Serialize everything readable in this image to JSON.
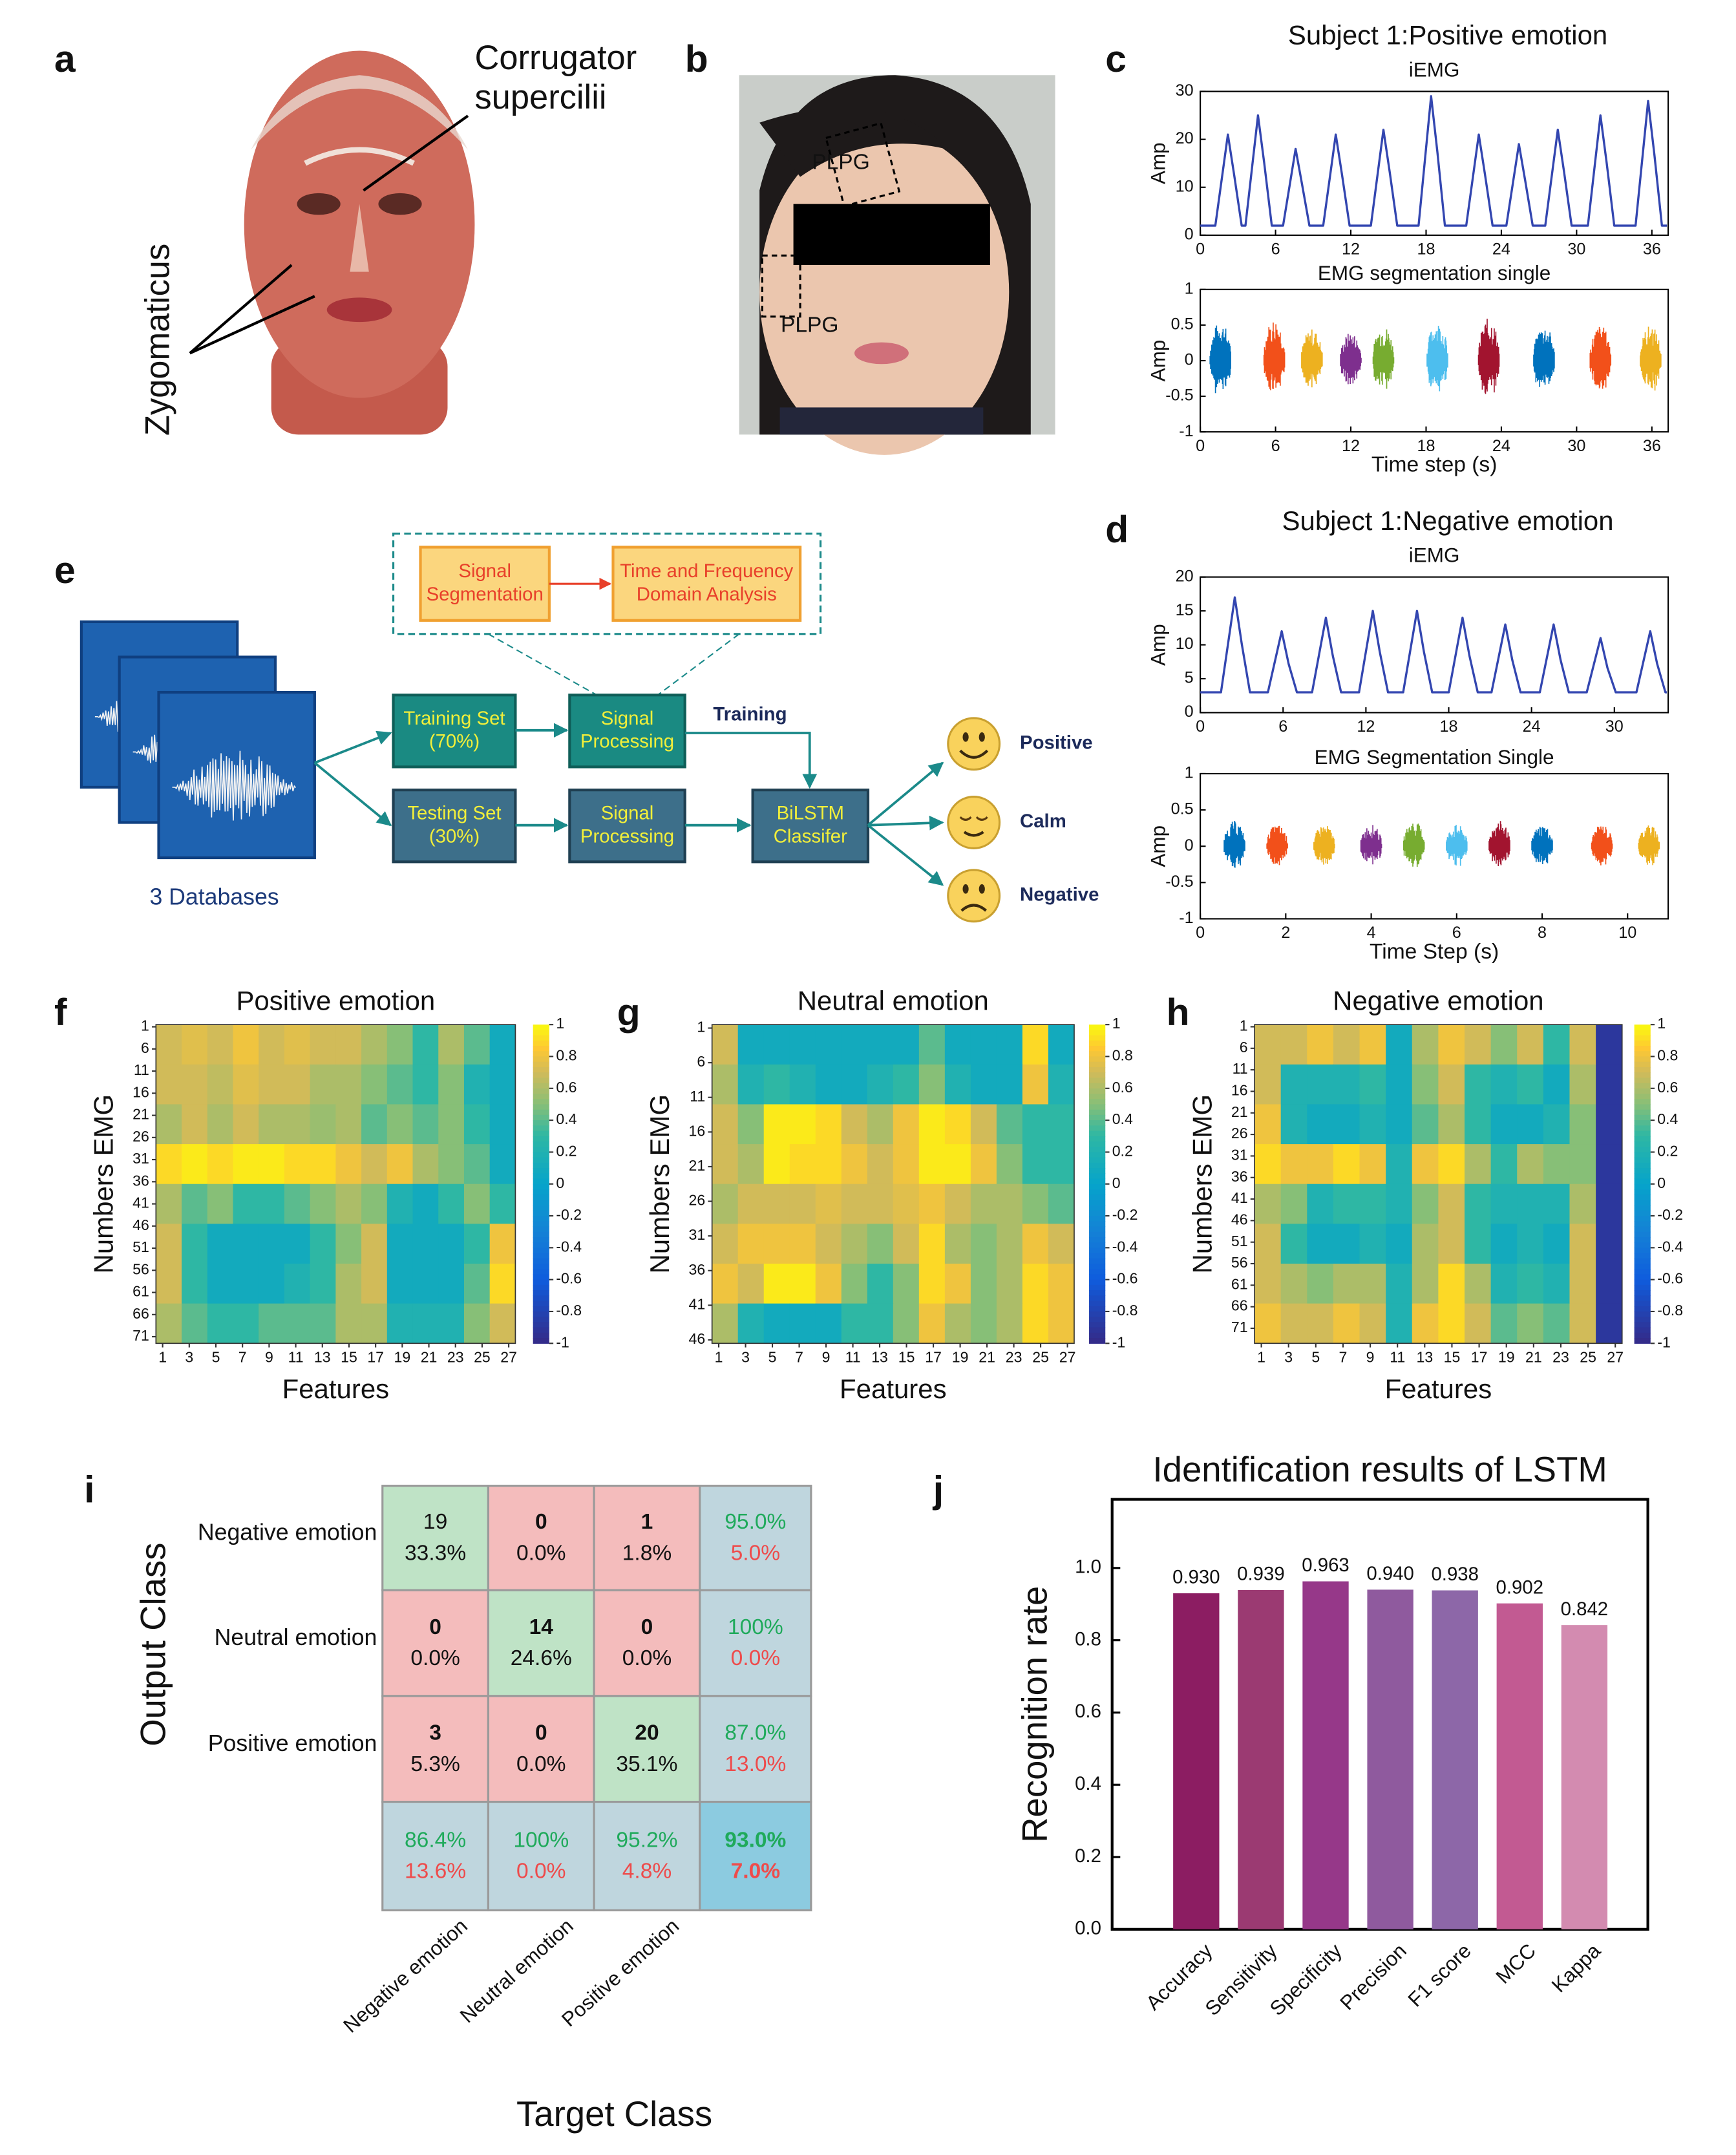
{
  "panel_labels": [
    "a",
    "b",
    "c",
    "d",
    "e",
    "f",
    "g",
    "h",
    "i",
    "j"
  ],
  "a": {
    "labels": [
      "Corrugator",
      "supercilii",
      "Zygomaticus"
    ]
  },
  "b": {
    "labels": [
      "PLPG",
      "PLPG"
    ]
  },
  "e": {
    "boxes": [
      {
        "lines": [
          "Signal",
          "Segmentation"
        ]
      },
      {
        "lines": [
          "Time and Frequency",
          "Domain Analysis"
        ]
      },
      {
        "lines": [
          "Training Set",
          "(70%)"
        ]
      },
      {
        "lines": [
          "Signal",
          "Processing"
        ]
      },
      {
        "lines": [
          "Testing Set",
          "(30%)"
        ]
      },
      {
        "lines": [
          "Signal",
          "Processing"
        ]
      },
      {
        "lines": [
          "BiLSTM",
          "Classifer"
        ]
      }
    ],
    "training_label": "Training",
    "databases": "3 Databases",
    "outputs": [
      "Positive",
      "Calm",
      "Negative"
    ]
  },
  "i": {
    "y_title": "Output Class",
    "x_title": "Target Class",
    "row_labels": [
      "Negative emotion",
      "Neutral emotion",
      "Positive emotion"
    ],
    "col_labels": [
      "Negative emotion",
      "Neutral emotion",
      "Positive emotion"
    ],
    "cells": [
      [
        [
          "19",
          "33.3%"
        ],
        [
          "0",
          "0.0%"
        ],
        [
          "1",
          "1.8%"
        ],
        [
          "95.0%",
          "5.0%"
        ]
      ],
      [
        [
          "0",
          "0.0%"
        ],
        [
          "14",
          "24.6%"
        ],
        [
          "0",
          "0.0%"
        ],
        [
          "100%",
          "0.0%"
        ]
      ],
      [
        [
          "3",
          "5.3%"
        ],
        [
          "0",
          "0.0%"
        ],
        [
          "20",
          "35.1%"
        ],
        [
          "87.0%",
          "13.0%"
        ]
      ],
      [
        [
          "86.4%",
          "13.6%"
        ],
        [
          "100%",
          "0.0%"
        ],
        [
          "95.2%",
          "4.8%"
        ],
        [
          "93.0%",
          "7.0%"
        ]
      ]
    ]
  },
  "chart_data": [
    {
      "type": "line",
      "title": "Subject 1:Positive emotion",
      "subtitle": "iEMG",
      "y_label": "Amp",
      "x": [
        0,
        1.2,
        2.2,
        2.7,
        3.3,
        3.6,
        4.6,
        5.1,
        5.7,
        6.6,
        7.6,
        8.1,
        8.7,
        9.8,
        10.8,
        11.3,
        11.9,
        13.6,
        14.6,
        15.1,
        15.7,
        17.4,
        18.4,
        18.9,
        19.5,
        21.2,
        22.2,
        22.7,
        23.3,
        24.4,
        25.4,
        25.9,
        26.5,
        27.5,
        28.5,
        29.0,
        29.6,
        30.9,
        31.9,
        32.4,
        33.0,
        34.7,
        35.7,
        36.2,
        36.8,
        37.2
      ],
      "values": [
        2,
        2,
        21,
        12.6,
        2,
        2,
        25,
        15,
        2,
        2,
        18,
        10.8,
        2,
        2,
        21,
        12.6,
        2,
        2,
        22,
        13.2,
        2,
        2,
        29,
        17.4,
        2,
        2,
        21,
        12.6,
        2,
        2,
        19,
        11.4,
        2,
        2,
        22,
        13.2,
        2,
        2,
        25,
        15,
        2,
        2,
        28,
        16.8,
        2,
        2
      ],
      "color": "#3346b0",
      "xlim": [
        0,
        37.3
      ],
      "ylim": [
        0,
        30
      ],
      "xticks": [
        0,
        6,
        12,
        18,
        24,
        30,
        36
      ],
      "yticks": [
        0,
        10,
        20,
        30
      ]
    },
    {
      "type": "burst",
      "title": "EMG segmentation single",
      "x_label": "Time step (s)",
      "y_label": "Amp",
      "x": [
        1.6,
        5.9,
        8.9,
        12,
        14.6,
        18.9,
        23,
        27.4,
        31.9,
        35.9
      ],
      "values": [
        0.55,
        0.6,
        0.45,
        0.4,
        0.5,
        0.55,
        0.6,
        0.5,
        0.5,
        0.5
      ],
      "colors": [
        "#0072bd",
        "#f2501a",
        "#edb120",
        "#7e2f8e",
        "#77ac30",
        "#4dbeee",
        "#a2142f",
        "#0072bd",
        "#f2501a",
        "#edb120"
      ],
      "xlim": [
        0,
        37.3
      ],
      "ylim": [
        -1,
        1
      ],
      "xticks": [
        0,
        6,
        12,
        18,
        24,
        30,
        36
      ],
      "yticks": [
        -1,
        -0.5,
        0,
        0.5,
        1
      ]
    },
    {
      "type": "line",
      "title": "Subject 1:Negative emotion",
      "subtitle": "iEMG",
      "y_label": "Amp",
      "x": [
        0,
        1.5,
        2.5,
        3.0,
        3.6,
        4.9,
        5.9,
        6.4,
        7.0,
        8.1,
        9.1,
        9.6,
        10.2,
        11.5,
        12.5,
        13.0,
        13.6,
        14.7,
        15.7,
        16.2,
        16.8,
        18.0,
        19.0,
        19.5,
        20.1,
        21.1,
        22.1,
        22.6,
        23.2,
        24.6,
        25.6,
        26.1,
        26.7,
        28.0,
        29.0,
        29.5,
        30.1,
        31.6,
        32.6,
        33.1,
        33.7,
        33.8
      ],
      "values": [
        3,
        3,
        17,
        10.2,
        3,
        3,
        12,
        7.2,
        3,
        3,
        14,
        8.4,
        3,
        3,
        15,
        9,
        3,
        3,
        15,
        9,
        3,
        3,
        14,
        8.4,
        3,
        3,
        13,
        7.8,
        3,
        3,
        13,
        7.8,
        3,
        3,
        11,
        6.6,
        3,
        3,
        12,
        7.2,
        3,
        3
      ],
      "color": "#3346b0",
      "xlim": [
        0,
        33.9
      ],
      "ylim": [
        0,
        20
      ],
      "xticks": [
        0,
        6,
        12,
        18,
        24,
        30
      ],
      "yticks": [
        0,
        5,
        10,
        15,
        20
      ]
    },
    {
      "type": "burst",
      "title": "EMG Segmentation Single",
      "x_label": "Time Step (s)",
      "y_label": "Amp",
      "x": [
        0.8,
        1.8,
        2.9,
        4.0,
        5.0,
        6.0,
        7.0,
        8.0,
        9.4,
        10.5
      ],
      "values": [
        0.35,
        0.3,
        0.3,
        0.3,
        0.35,
        0.3,
        0.35,
        0.3,
        0.3,
        0.3
      ],
      "colors": [
        "#0072bd",
        "#f2501a",
        "#edb120",
        "#7e2f8e",
        "#77ac30",
        "#4dbeee",
        "#a2142f",
        "#0072bd",
        "#f2501a",
        "#edb120"
      ],
      "xlim": [
        0,
        10.95
      ],
      "ylim": [
        -1,
        1
      ],
      "xticks": [
        0,
        2,
        4,
        6,
        8,
        10
      ],
      "yticks": [
        -1,
        -0.5,
        0,
        0.5,
        1
      ]
    },
    {
      "type": "heatmap",
      "title": "Positive emotion",
      "x_label": "Features",
      "y_label": "Numbers EMG",
      "xlim": [
        0.5,
        27.5
      ],
      "ylim": [
        0.5,
        72.5
      ],
      "xticks": [
        1,
        3,
        5,
        7,
        9,
        11,
        13,
        15,
        17,
        19,
        21,
        23,
        25,
        27
      ],
      "yticks": [
        1,
        6,
        11,
        16,
        21,
        26,
        31,
        36,
        41,
        46,
        51,
        56,
        61,
        66,
        71
      ],
      "zlim": [
        -1,
        1
      ],
      "zticks": [
        1,
        0.8,
        0.6,
        0.4,
        0.2,
        0,
        -0.2,
        -0.4,
        -0.6,
        -0.8,
        -1
      ],
      "colormap": [
        [
          -1,
          "#352a87"
        ],
        [
          -0.6,
          "#0f5cdd"
        ],
        [
          -0.3,
          "#1481d6"
        ],
        [
          0,
          "#06a4ca"
        ],
        [
          0.3,
          "#2eb7a4"
        ],
        [
          0.5,
          "#87bf77"
        ],
        [
          0.7,
          "#d1bb59"
        ],
        [
          0.85,
          "#fec832"
        ],
        [
          1,
          "#f9fb0e"
        ]
      ],
      "z": [
        [
          0.7,
          0.75,
          0.7,
          0.8,
          0.7,
          0.75,
          0.7,
          0.7,
          0.6,
          0.5,
          0.3,
          0.6,
          0.4,
          0.1
        ],
        [
          0.7,
          0.7,
          0.65,
          0.75,
          0.7,
          0.7,
          0.6,
          0.6,
          0.5,
          0.4,
          0.3,
          0.5,
          0.2,
          0.1
        ],
        [
          0.6,
          0.7,
          0.6,
          0.7,
          0.6,
          0.6,
          0.55,
          0.6,
          0.4,
          0.5,
          0.4,
          0.5,
          0.3,
          0.1
        ],
        [
          0.9,
          0.95,
          0.9,
          0.95,
          0.95,
          0.9,
          0.9,
          0.8,
          0.7,
          0.8,
          0.6,
          0.5,
          0.4,
          0.1
        ],
        [
          0.6,
          0.4,
          0.5,
          0.3,
          0.3,
          0.4,
          0.5,
          0.6,
          0.5,
          0.2,
          0.1,
          0.3,
          0.5,
          0.3
        ],
        [
          0.7,
          0.3,
          0.1,
          0.1,
          0.1,
          0.1,
          0.3,
          0.5,
          0.7,
          0.1,
          0.1,
          0.1,
          0.3,
          0.8
        ],
        [
          0.7,
          0.3,
          0.1,
          0.1,
          0.1,
          0.2,
          0.3,
          0.6,
          0.7,
          0.1,
          0.1,
          0.1,
          0.4,
          0.9
        ],
        [
          0.6,
          0.4,
          0.3,
          0.3,
          0.4,
          0.4,
          0.4,
          0.6,
          0.6,
          0.2,
          0.2,
          0.2,
          0.5,
          0.7
        ]
      ]
    },
    {
      "type": "heatmap",
      "title": "Neutral emotion",
      "x_label": "Features",
      "y_label": "Numbers EMG",
      "xlim": [
        0.5,
        27.5
      ],
      "ylim": [
        0.5,
        46.5
      ],
      "xticks": [
        1,
        3,
        5,
        7,
        9,
        11,
        13,
        15,
        17,
        19,
        21,
        23,
        25,
        27
      ],
      "yticks": [
        1,
        6,
        11,
        16,
        21,
        26,
        31,
        36,
        41,
        46
      ],
      "zlim": [
        -1,
        1
      ],
      "zticks": [
        1,
        0.8,
        0.6,
        0.4,
        0.2,
        0,
        -0.2,
        -0.4,
        -0.6,
        -0.8,
        -1
      ],
      "colormap": [
        [
          -1,
          "#352a87"
        ],
        [
          -0.6,
          "#0f5cdd"
        ],
        [
          -0.3,
          "#1481d6"
        ],
        [
          0,
          "#06a4ca"
        ],
        [
          0.3,
          "#2eb7a4"
        ],
        [
          0.5,
          "#87bf77"
        ],
        [
          0.7,
          "#d1bb59"
        ],
        [
          0.85,
          "#fec832"
        ],
        [
          1,
          "#f9fb0e"
        ]
      ],
      "z": [
        [
          0.7,
          0.1,
          0.1,
          0.1,
          0.1,
          0.1,
          0.1,
          0.1,
          0.4,
          0.1,
          0.1,
          0.1,
          0.9,
          0.1
        ],
        [
          0.6,
          0.2,
          0.3,
          0.2,
          0.1,
          0.1,
          0.2,
          0.3,
          0.5,
          0.2,
          0.1,
          0.1,
          0.8,
          0.2
        ],
        [
          0.7,
          0.5,
          0.95,
          0.95,
          0.9,
          0.7,
          0.6,
          0.8,
          0.95,
          0.9,
          0.7,
          0.4,
          0.3,
          0.3
        ],
        [
          0.7,
          0.6,
          0.95,
          0.9,
          0.9,
          0.8,
          0.7,
          0.8,
          0.95,
          0.95,
          0.8,
          0.5,
          0.3,
          0.3
        ],
        [
          0.6,
          0.7,
          0.7,
          0.7,
          0.75,
          0.7,
          0.7,
          0.75,
          0.8,
          0.7,
          0.6,
          0.6,
          0.5,
          0.4
        ],
        [
          0.7,
          0.8,
          0.8,
          0.8,
          0.7,
          0.6,
          0.5,
          0.7,
          0.9,
          0.6,
          0.5,
          0.6,
          0.8,
          0.7
        ],
        [
          0.8,
          0.7,
          0.95,
          0.95,
          0.8,
          0.5,
          0.3,
          0.5,
          0.9,
          0.8,
          0.5,
          0.6,
          0.9,
          0.8
        ],
        [
          0.6,
          0.2,
          0.1,
          0.1,
          0.1,
          0.3,
          0.3,
          0.5,
          0.8,
          0.6,
          0.5,
          0.6,
          0.9,
          0.8
        ]
      ]
    },
    {
      "type": "heatmap",
      "title": "Negative emotion",
      "x_label": "Features",
      "y_label": "Numbers EMG",
      "xlim": [
        0.5,
        27.5
      ],
      "ylim": [
        0.5,
        74.5
      ],
      "xticks": [
        1,
        3,
        5,
        7,
        9,
        11,
        13,
        15,
        17,
        19,
        21,
        23,
        25,
        27
      ],
      "yticks": [
        1,
        6,
        11,
        16,
        21,
        26,
        31,
        36,
        41,
        46,
        51,
        56,
        61,
        66,
        71
      ],
      "zlim": [
        -1,
        1
      ],
      "zticks": [
        1,
        0.8,
        0.6,
        0.4,
        0.2,
        0,
        -0.2,
        -0.4,
        -0.6,
        -0.8,
        -1
      ],
      "colormap": [
        [
          -1,
          "#352a87"
        ],
        [
          -0.6,
          "#0f5cdd"
        ],
        [
          -0.3,
          "#1481d6"
        ],
        [
          0,
          "#06a4ca"
        ],
        [
          0.3,
          "#2eb7a4"
        ],
        [
          0.5,
          "#87bf77"
        ],
        [
          0.7,
          "#d1bb59"
        ],
        [
          0.85,
          "#fec832"
        ],
        [
          1,
          "#f9fb0e"
        ]
      ],
      "z": [
        [
          0.7,
          0.7,
          0.8,
          0.7,
          0.8,
          0.1,
          0.6,
          0.8,
          0.7,
          0.5,
          0.7,
          0.3,
          0.7,
          -0.9
        ],
        [
          0.7,
          0.2,
          0.2,
          0.2,
          0.3,
          0.1,
          0.5,
          0.7,
          0.3,
          0.2,
          0.3,
          0.1,
          0.6,
          -0.9
        ],
        [
          0.8,
          0.2,
          0.1,
          0.1,
          0.2,
          0.1,
          0.4,
          0.6,
          0.3,
          0.1,
          0.1,
          0.2,
          0.5,
          -0.9
        ],
        [
          0.9,
          0.8,
          0.8,
          0.9,
          0.8,
          0.2,
          0.8,
          0.9,
          0.6,
          0.3,
          0.6,
          0.5,
          0.5,
          -0.9
        ],
        [
          0.6,
          0.5,
          0.2,
          0.3,
          0.3,
          0.2,
          0.5,
          0.7,
          0.3,
          0.2,
          0.2,
          0.2,
          0.6,
          -0.9
        ],
        [
          0.7,
          0.3,
          0.1,
          0.1,
          0.2,
          0.1,
          0.6,
          0.7,
          0.3,
          0.1,
          0.2,
          0.1,
          0.7,
          -0.9
        ],
        [
          0.7,
          0.6,
          0.5,
          0.6,
          0.6,
          0.2,
          0.6,
          0.9,
          0.6,
          0.2,
          0.3,
          0.2,
          0.7,
          -0.9
        ],
        [
          0.8,
          0.7,
          0.7,
          0.8,
          0.7,
          0.2,
          0.8,
          0.9,
          0.7,
          0.4,
          0.5,
          0.4,
          0.7,
          -0.9
        ]
      ]
    },
    {
      "type": "bar",
      "title": "Identification results of LSTM",
      "y_label": "Recognition rate",
      "categories": [
        "Accuracy",
        "Sensitivity",
        "Specificity",
        "Precision",
        "F1 score",
        "MCC",
        "Kappa"
      ],
      "values": [
        0.93,
        0.939,
        0.963,
        0.94,
        0.938,
        0.902,
        0.842
      ],
      "value_labels": [
        "0.930",
        "0.939",
        "0.963",
        "0.940",
        "0.938",
        "0.902",
        "0.842"
      ],
      "colors": [
        "#8c1d62",
        "#9b3a72",
        "#963889",
        "#8f5a9e",
        "#8d67a8",
        "#c25a92",
        "#d38bb0"
      ],
      "ylim": [
        0,
        1.19
      ],
      "yticks": [
        {
          "value": 0,
          "label": "0.0"
        },
        0.2,
        0.4,
        0.6,
        0.8,
        {
          "value": 1,
          "label": "1.0"
        }
      ]
    }
  ]
}
